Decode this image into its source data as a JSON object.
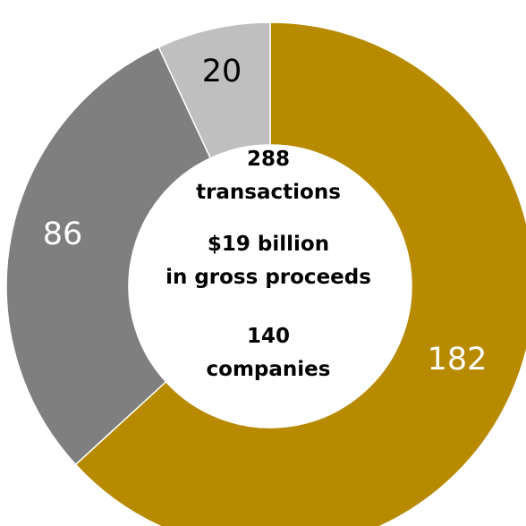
{
  "chart_data": {
    "type": "pie",
    "variant": "donut",
    "categories": [
      "",
      "",
      ""
    ],
    "values": [
      182,
      86,
      20
    ],
    "slice_colors": [
      "#b78a00",
      "#7f7f7f",
      "#bfbfbf"
    ],
    "slice_label_colors": [
      "#ffffff",
      "#ffffff",
      "#000000"
    ],
    "slice_labels": [
      "182",
      "86",
      "20"
    ],
    "start_angle_deg": 0,
    "direction": "clockwise",
    "center_text": [
      "288",
      "transactions",
      "$19 billion",
      "in gross proceeds",
      "140",
      "companies"
    ]
  }
}
